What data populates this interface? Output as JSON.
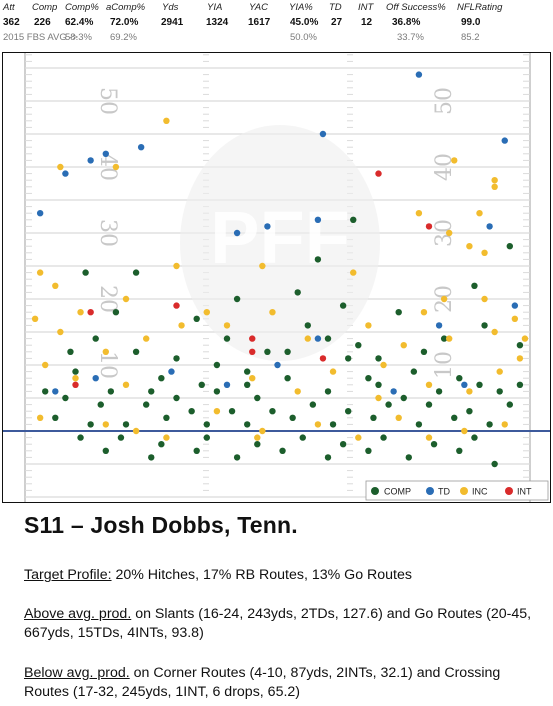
{
  "stats": {
    "headers": [
      "Att",
      "Comp",
      "Comp%",
      "aComp%",
      "Yds",
      "YIA",
      "YAC",
      "YIA%",
      "TD",
      "INT",
      "Off Success%",
      "NFLRating"
    ],
    "values": [
      "362",
      "226",
      "62.4%",
      "72.0%",
      "2941",
      "1324",
      "1617",
      "45.0%",
      "27",
      "12",
      "36.8%",
      "99.0"
    ],
    "avg_label": "2015 FBS AVG ->",
    "avg_values": [
      "58.3%",
      "69.2%",
      "50.0%",
      "33.7%",
      "85.2"
    ]
  },
  "chart": {
    "yard_numbers": [
      "50",
      "40",
      "30",
      "20",
      "10"
    ],
    "watermark": "PFF",
    "legend": [
      {
        "label": "COMP",
        "color": "#1c5e2c"
      },
      {
        "label": "TD",
        "color": "#2a6db5"
      },
      {
        "label": "INC",
        "color": "#f2bc2e"
      },
      {
        "label": "INT",
        "color": "#d92b2b"
      }
    ]
  },
  "chart_data": {
    "type": "scatter",
    "xlabel": "",
    "ylabel": "",
    "ylim": [
      -6,
      60
    ],
    "xlim": [
      0,
      100
    ],
    "series": [
      {
        "name": "COMP",
        "color": "#1c5e2c",
        "points": [
          [
            12,
            24
          ],
          [
            18,
            18
          ],
          [
            14,
            14
          ],
          [
            22,
            12
          ],
          [
            30,
            11
          ],
          [
            38,
            10
          ],
          [
            10,
            9
          ],
          [
            27,
            8
          ],
          [
            35,
            7
          ],
          [
            44,
            7
          ],
          [
            52,
            8
          ],
          [
            60,
            6
          ],
          [
            70,
            7
          ],
          [
            77,
            9
          ],
          [
            86,
            8
          ],
          [
            94,
            6
          ],
          [
            8,
            5
          ],
          [
            15,
            4
          ],
          [
            24,
            4
          ],
          [
            33,
            3
          ],
          [
            41,
            3
          ],
          [
            49,
            3
          ],
          [
            57,
            4
          ],
          [
            64,
            3
          ],
          [
            72,
            4
          ],
          [
            80,
            4
          ],
          [
            88,
            3
          ],
          [
            96,
            4
          ],
          [
            6,
            2
          ],
          [
            13,
            1
          ],
          [
            20,
            1
          ],
          [
            28,
            2
          ],
          [
            36,
            1
          ],
          [
            44,
            1
          ],
          [
            53,
            2
          ],
          [
            61,
            1
          ],
          [
            69,
            2
          ],
          [
            78,
            1
          ],
          [
            85,
            2
          ],
          [
            92,
            1
          ],
          [
            11,
            -1
          ],
          [
            19,
            -1
          ],
          [
            27,
            -2
          ],
          [
            36,
            -1
          ],
          [
            46,
            -2
          ],
          [
            55,
            -1
          ],
          [
            63,
            -2
          ],
          [
            71,
            -1
          ],
          [
            81,
            -2
          ],
          [
            89,
            -1
          ],
          [
            16,
            -3
          ],
          [
            25,
            -4
          ],
          [
            34,
            -3
          ],
          [
            42,
            -4
          ],
          [
            51,
            -3
          ],
          [
            60,
            -4
          ],
          [
            68,
            -3
          ],
          [
            76,
            -4
          ],
          [
            86,
            -3
          ],
          [
            93,
            -5
          ],
          [
            9,
            12
          ],
          [
            40,
            14
          ],
          [
            48,
            12
          ],
          [
            56,
            16
          ],
          [
            66,
            13
          ],
          [
            74,
            18
          ],
          [
            83,
            14
          ],
          [
            91,
            16
          ],
          [
            98,
            13
          ],
          [
            54,
            21
          ],
          [
            63,
            19
          ],
          [
            89,
            22
          ],
          [
            96,
            28
          ],
          [
            58,
            26
          ],
          [
            64,
            11
          ],
          [
            46,
            5
          ],
          [
            38,
            6
          ],
          [
            17,
            6
          ],
          [
            25,
            6
          ],
          [
            30,
            5
          ],
          [
            68,
            8
          ],
          [
            75,
            5
          ],
          [
            82,
            6
          ],
          [
            90,
            7
          ],
          [
            98,
            7
          ],
          [
            4,
            6
          ],
          [
            34,
            17
          ],
          [
            42,
            20
          ],
          [
            22,
            24
          ],
          [
            65,
            32
          ],
          [
            44,
            9
          ],
          [
            52,
            12
          ],
          [
            60,
            14
          ],
          [
            70,
            11
          ],
          [
            79,
            12
          ]
        ]
      },
      {
        "name": "TD",
        "color": "#2a6db5",
        "points": [
          [
            78,
            54
          ],
          [
            59,
            45
          ],
          [
            16,
            42
          ],
          [
            8,
            39
          ],
          [
            23,
            43
          ],
          [
            13,
            41
          ],
          [
            3,
            33
          ],
          [
            42,
            30
          ],
          [
            58,
            32
          ],
          [
            48,
            31
          ],
          [
            92,
            31
          ],
          [
            95,
            44
          ],
          [
            82,
            16
          ],
          [
            58,
            14
          ],
          [
            50,
            10
          ],
          [
            87,
            7
          ],
          [
            14,
            8
          ],
          [
            6,
            6
          ],
          [
            40,
            7
          ],
          [
            73,
            6
          ],
          [
            97,
            19
          ],
          [
            29,
            9
          ]
        ]
      },
      {
        "name": "INC",
        "color": "#f2bc2e",
        "points": [
          [
            28,
            47
          ],
          [
            7,
            40
          ],
          [
            18,
            40
          ],
          [
            85,
            41
          ],
          [
            93,
            38
          ],
          [
            93,
            37
          ],
          [
            90,
            33
          ],
          [
            78,
            33
          ],
          [
            84,
            30
          ],
          [
            88,
            28
          ],
          [
            91,
            27
          ],
          [
            3,
            24
          ],
          [
            6,
            22
          ],
          [
            47,
            25
          ],
          [
            30,
            25
          ],
          [
            65,
            24
          ],
          [
            20,
            20
          ],
          [
            11,
            18
          ],
          [
            2,
            17
          ],
          [
            7,
            15
          ],
          [
            16,
            12
          ],
          [
            24,
            14
          ],
          [
            31,
            16
          ],
          [
            49,
            18
          ],
          [
            56,
            14
          ],
          [
            68,
            16
          ],
          [
            75,
            13
          ],
          [
            84,
            14
          ],
          [
            93,
            15
          ],
          [
            97,
            17
          ],
          [
            99,
            14
          ],
          [
            4,
            10
          ],
          [
            10,
            8
          ],
          [
            20,
            7
          ],
          [
            45,
            8
          ],
          [
            54,
            6
          ],
          [
            61,
            9
          ],
          [
            71,
            10
          ],
          [
            80,
            7
          ],
          [
            88,
            6
          ],
          [
            94,
            9
          ],
          [
            98,
            11
          ],
          [
            3,
            2
          ],
          [
            16,
            1
          ],
          [
            22,
            0
          ],
          [
            28,
            -1
          ],
          [
            38,
            3
          ],
          [
            47,
            0
          ],
          [
            58,
            1
          ],
          [
            66,
            -1
          ],
          [
            74,
            2
          ],
          [
            80,
            -1
          ],
          [
            87,
            0
          ],
          [
            95,
            1
          ],
          [
            46,
            -1
          ],
          [
            70,
            5
          ],
          [
            36,
            18
          ],
          [
            40,
            16
          ],
          [
            91,
            20
          ],
          [
            79,
            18
          ],
          [
            83,
            20
          ]
        ]
      },
      {
        "name": "INT",
        "color": "#d92b2b",
        "points": [
          [
            70,
            39
          ],
          [
            80,
            31
          ],
          [
            13,
            18
          ],
          [
            30,
            19
          ],
          [
            45,
            14
          ],
          [
            59,
            11
          ],
          [
            10,
            7
          ],
          [
            45,
            12
          ]
        ]
      }
    ]
  },
  "article": {
    "title": "S11 – Josh Dobbs, Tenn.",
    "p1_label": "Target Profile:",
    "p1_text": " 20% Hitches, 17% RB Routes, 13% Go Routes",
    "p2_label": "Above avg. prod.",
    "p2_text": " on Slants (16-24, 243yds, 2TDs, 127.6) and Go Routes (20-45, 667yds, 15TDs, 4INTs, 93.8)",
    "p3_label": "Below avg. prod.",
    "p3_text": "  on  Corner Routes (4-10, 87yds, 2INTs, 32.1) and Crossing Routes (17-32, 245yds, 1INT, 6 drops, 65.2)"
  }
}
